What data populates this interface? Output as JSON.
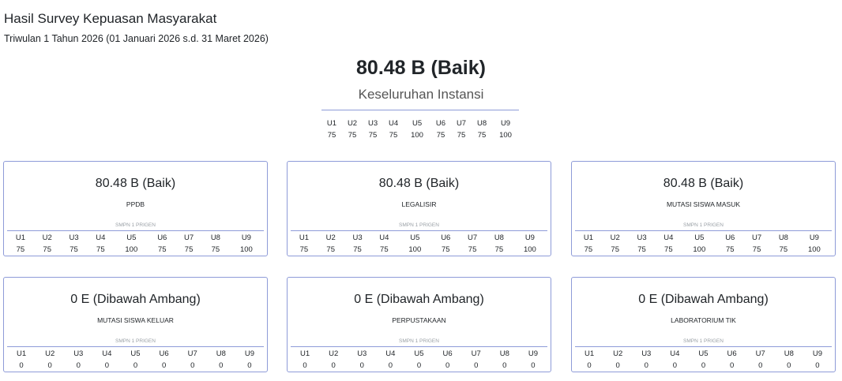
{
  "header": {
    "title": "Hasil Survey Kepuasan Masyarakat",
    "subtitle": "Triwulan 1 Tahun 2026 (01 Januari 2026 s.d. 31 Maret 2026)"
  },
  "overall": {
    "score": "80.48 B (Baik)",
    "label": "Keseluruhan Instansi",
    "units": [
      "U1",
      "U2",
      "U3",
      "U4",
      "U5",
      "U6",
      "U7",
      "U8",
      "U9"
    ],
    "values": [
      "75",
      "75",
      "75",
      "75",
      "100",
      "75",
      "75",
      "75",
      "100"
    ]
  },
  "cards": [
    {
      "score": "80.48 B (Baik)",
      "service": "PPDB",
      "org": "SMPN 1 PRIGEN",
      "units": [
        "U1",
        "U2",
        "U3",
        "U4",
        "U5",
        "U6",
        "U7",
        "U8",
        "U9"
      ],
      "values": [
        "75",
        "75",
        "75",
        "75",
        "100",
        "75",
        "75",
        "75",
        "100"
      ]
    },
    {
      "score": "80.48 B (Baik)",
      "service": "LEGALISIR",
      "org": "SMPN 1 PRIGEN",
      "units": [
        "U1",
        "U2",
        "U3",
        "U4",
        "U5",
        "U6",
        "U7",
        "U8",
        "U9"
      ],
      "values": [
        "75",
        "75",
        "75",
        "75",
        "100",
        "75",
        "75",
        "75",
        "100"
      ]
    },
    {
      "score": "80.48 B (Baik)",
      "service": "MUTASI SISWA MASUK",
      "org": "SMPN 1 PRIGEN",
      "units": [
        "U1",
        "U2",
        "U3",
        "U4",
        "U5",
        "U6",
        "U7",
        "U8",
        "U9"
      ],
      "values": [
        "75",
        "75",
        "75",
        "75",
        "100",
        "75",
        "75",
        "75",
        "100"
      ]
    },
    {
      "score": "0 E (Dibawah Ambang)",
      "service": "MUTASI SISWA KELUAR",
      "org": "SMPN 1 PRIGEN",
      "units": [
        "U1",
        "U2",
        "U3",
        "U4",
        "U5",
        "U6",
        "U7",
        "U8",
        "U9"
      ],
      "values": [
        "0",
        "0",
        "0",
        "0",
        "0",
        "0",
        "0",
        "0",
        "0"
      ]
    },
    {
      "score": "0 E (Dibawah Ambang)",
      "service": "PERPUSTAKAAN",
      "org": "SMPN 1 PRIGEN",
      "units": [
        "U1",
        "U2",
        "U3",
        "U4",
        "U5",
        "U6",
        "U7",
        "U8",
        "U9"
      ],
      "values": [
        "0",
        "0",
        "0",
        "0",
        "0",
        "0",
        "0",
        "0",
        "0"
      ]
    },
    {
      "score": "0 E (Dibawah Ambang)",
      "service": "LABORATORIUM TIK",
      "org": "SMPN 1 PRIGEN",
      "units": [
        "U1",
        "U2",
        "U3",
        "U4",
        "U5",
        "U6",
        "U7",
        "U8",
        "U9"
      ],
      "values": [
        "0",
        "0",
        "0",
        "0",
        "0",
        "0",
        "0",
        "0",
        "0"
      ]
    }
  ]
}
